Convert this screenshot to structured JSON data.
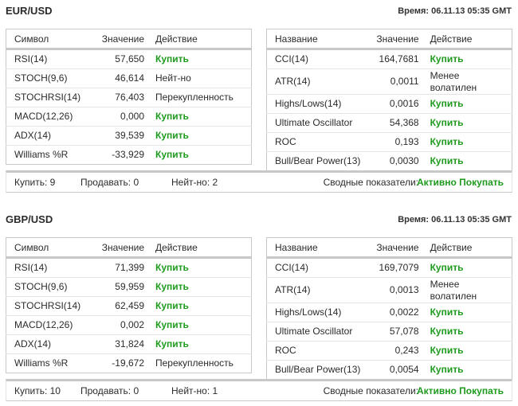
{
  "blocks": [
    {
      "title": "EUR/USD",
      "time": "Время: 06.11.13 05:35 GMT",
      "left": {
        "headers": [
          "Символ",
          "Значение",
          "Действие"
        ],
        "rows": [
          {
            "name": "RSI(14)",
            "value": "57,650",
            "action": "Купить",
            "buy": true
          },
          {
            "name": "STOCH(9,6)",
            "value": "46,614",
            "action": "Нейт-но",
            "buy": false
          },
          {
            "name": "STOCHRSI(14)",
            "value": "76,403",
            "action": "Перекупленность",
            "buy": false
          },
          {
            "name": "MACD(12,26)",
            "value": "0,000",
            "action": "Купить",
            "buy": true
          },
          {
            "name": "ADX(14)",
            "value": "39,539",
            "action": "Купить",
            "buy": true
          },
          {
            "name": "Williams %R",
            "value": "-33,929",
            "action": "Купить",
            "buy": true
          }
        ]
      },
      "right": {
        "headers": [
          "Название",
          "Значение",
          "Действие"
        ],
        "rows": [
          {
            "name": "CCI(14)",
            "value": "164,7681",
            "action": "Купить",
            "buy": true
          },
          {
            "name": "ATR(14)",
            "value": "0,0011",
            "action": "Менее волатилен",
            "buy": false
          },
          {
            "name": "Highs/Lows(14)",
            "value": "0,0016",
            "action": "Купить",
            "buy": true
          },
          {
            "name": "Ultimate Oscillator",
            "value": "54,368",
            "action": "Купить",
            "buy": true
          },
          {
            "name": "ROC",
            "value": "0,193",
            "action": "Купить",
            "buy": true
          },
          {
            "name": "Bull/Bear Power(13)",
            "value": "0,0030",
            "action": "Купить",
            "buy": true
          }
        ]
      },
      "summary": {
        "buy": "Купить: 9",
        "sell": "Продавать: 0",
        "neutral": "Нейт-но: 2",
        "label": "Сводные показатели:",
        "verdict": "Активно Покупать"
      }
    },
    {
      "title": "GBP/USD",
      "time": "Время: 06.11.13 05:35 GMT",
      "left": {
        "headers": [
          "Символ",
          "Значение",
          "Действие"
        ],
        "rows": [
          {
            "name": "RSI(14)",
            "value": "71,399",
            "action": "Купить",
            "buy": true
          },
          {
            "name": "STOCH(9,6)",
            "value": "59,959",
            "action": "Купить",
            "buy": true
          },
          {
            "name": "STOCHRSI(14)",
            "value": "62,459",
            "action": "Купить",
            "buy": true
          },
          {
            "name": "MACD(12,26)",
            "value": "0,002",
            "action": "Купить",
            "buy": true
          },
          {
            "name": "ADX(14)",
            "value": "31,824",
            "action": "Купить",
            "buy": true
          },
          {
            "name": "Williams %R",
            "value": "-19,672",
            "action": "Перекупленность",
            "buy": false
          }
        ]
      },
      "right": {
        "headers": [
          "Название",
          "Значение",
          "Действие"
        ],
        "rows": [
          {
            "name": "CCI(14)",
            "value": "169,7079",
            "action": "Купить",
            "buy": true
          },
          {
            "name": "ATR(14)",
            "value": "0,0013",
            "action": "Менее волатилен",
            "buy": false
          },
          {
            "name": "Highs/Lows(14)",
            "value": "0,0022",
            "action": "Купить",
            "buy": true
          },
          {
            "name": "Ultimate Oscillator",
            "value": "57,078",
            "action": "Купить",
            "buy": true
          },
          {
            "name": "ROC",
            "value": "0,243",
            "action": "Купить",
            "buy": true
          },
          {
            "name": "Bull/Bear Power(13)",
            "value": "0,0054",
            "action": "Купить",
            "buy": true
          }
        ]
      },
      "summary": {
        "buy": "Купить: 10",
        "sell": "Продавать: 0",
        "neutral": "Нейт-но: 1",
        "label": "Сводные показатели:",
        "verdict": "Активно Покупать"
      }
    }
  ],
  "colors": {
    "buy": "#1e9a1e",
    "border": "#c8c8c8"
  }
}
